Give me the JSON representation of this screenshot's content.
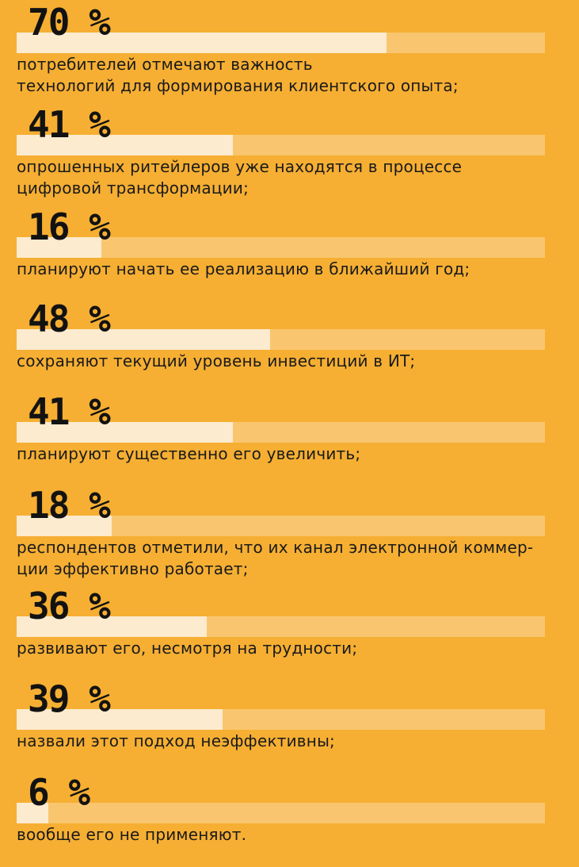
{
  "chart_data": {
    "type": "bar",
    "orientation": "horizontal",
    "max": 100,
    "colors": {
      "background": "#F6AF33",
      "track": "#F9C66F",
      "fill": "#FCEBCF",
      "value_text": "#121212"
    },
    "items": [
      {
        "value": 70,
        "value_label": "70 %",
        "text": "потребителей отмечают важность\nтехнологий для формирования клиентского опыта;"
      },
      {
        "value": 41,
        "value_label": "41 %",
        "text": "опрошенных ритейлеров уже находятся в процессе\nцифровой трансформации;"
      },
      {
        "value": 16,
        "value_label": "16 %",
        "text": "планируют начать ее реализацию в ближайший год;"
      },
      {
        "value": 48,
        "value_label": "48 %",
        "text": "сохраняют текущий уровень инвестиций в ИТ;"
      },
      {
        "value": 41,
        "value_label": "41 %",
        "text": "планируют существенно его увеличить;"
      },
      {
        "value": 18,
        "value_label": "18 %",
        "text": "респондентов отметили, что их канал электронной коммер-\nции эффективно работает;"
      },
      {
        "value": 36,
        "value_label": "36 %",
        "text": "развивают его, несмотря на трудности;"
      },
      {
        "value": 39,
        "value_label": "39 %",
        "text": "назвали этот подход неэффективны;"
      },
      {
        "value": 6,
        "value_label": "6 %",
        "text": "вообще его не применяют."
      }
    ]
  }
}
